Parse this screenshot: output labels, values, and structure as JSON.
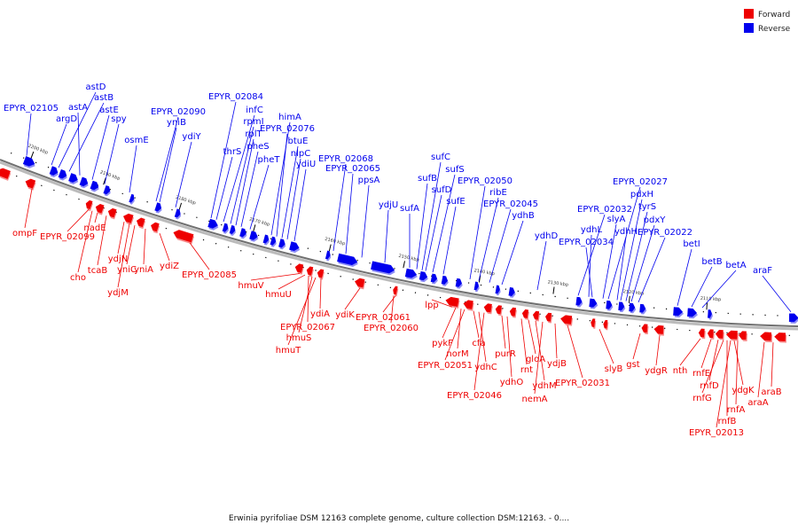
{
  "colors": {
    "forward": "#ee0000",
    "reverse": "#0000ee",
    "track": "#888888",
    "tick": "#000000"
  },
  "legend": [
    {
      "key": "forward",
      "label": "Forward"
    },
    {
      "key": "reverse",
      "label": "Reverse"
    }
  ],
  "caption": "Erwinia pyrifoliae DSM 12163 complete genome, culture collection DSM:12163. - 0....",
  "scale_ticks": [
    "2200 kbp",
    "2190 kbp",
    "2180 kbp",
    "2170 kbp",
    "2160 kbp",
    "2150 kbp",
    "2140 kbp",
    "2130 kbp",
    "2120 kbp",
    "2110 kbp"
  ],
  "reverse_genes": [
    "EPYR_02105",
    "astD",
    "astB",
    "astA",
    "argD",
    "astE",
    "spy",
    "osmE",
    "EPYR_02090",
    "yniB",
    "ydiY",
    "EPYR_02084",
    "infC",
    "rpmI",
    "rplT",
    "thrS",
    "pheS",
    "pheT",
    "himA",
    "EPYR_02076",
    "btuE",
    "nlpC",
    "ydiU",
    "EPYR_02068",
    "EPYR_02065",
    "ppsA",
    "ydjU",
    "sufA",
    "sufC",
    "sufS",
    "sufB",
    "sufD",
    "sufE",
    "EPYR_02050",
    "ribE",
    "EPYR_02045",
    "ydhB",
    "ydhD",
    "EPYR_02032",
    "ydhL",
    "EPYR_02034",
    "EPYR_02027",
    "pdxH",
    "slyA",
    "tyrS",
    "ydhH",
    "pdxY",
    "EPYR_02022",
    "betI",
    "betB",
    "betA",
    "araF"
  ],
  "forward_genes": [
    "ompF",
    "EPYR_02099",
    "nadE",
    "cho",
    "tcaB",
    "ydjN",
    "yniC",
    "ydjM",
    "yniA",
    "ydiZ",
    "EPYR_02085",
    "hmuV",
    "hmuU",
    "EPYR_02067",
    "hmuS",
    "hmuT",
    "ydiA",
    "ydiK",
    "EPYR_02061",
    "EPYR_02060",
    "lpp",
    "pykF",
    "norM",
    "EPYR_02051",
    "cfa",
    "ydhC",
    "EPYR_02046",
    "purR",
    "ydhO",
    "rnt",
    "gloA",
    "ydhM",
    "nemA",
    "ydjB",
    "EPYR_02031",
    "slyB",
    "gst",
    "ydgR",
    "nth",
    "rnfE",
    "rnfD",
    "rnfG",
    "ydgK",
    "rnfA",
    "rnfB",
    "EPYR_02013",
    "araB",
    "araA"
  ]
}
